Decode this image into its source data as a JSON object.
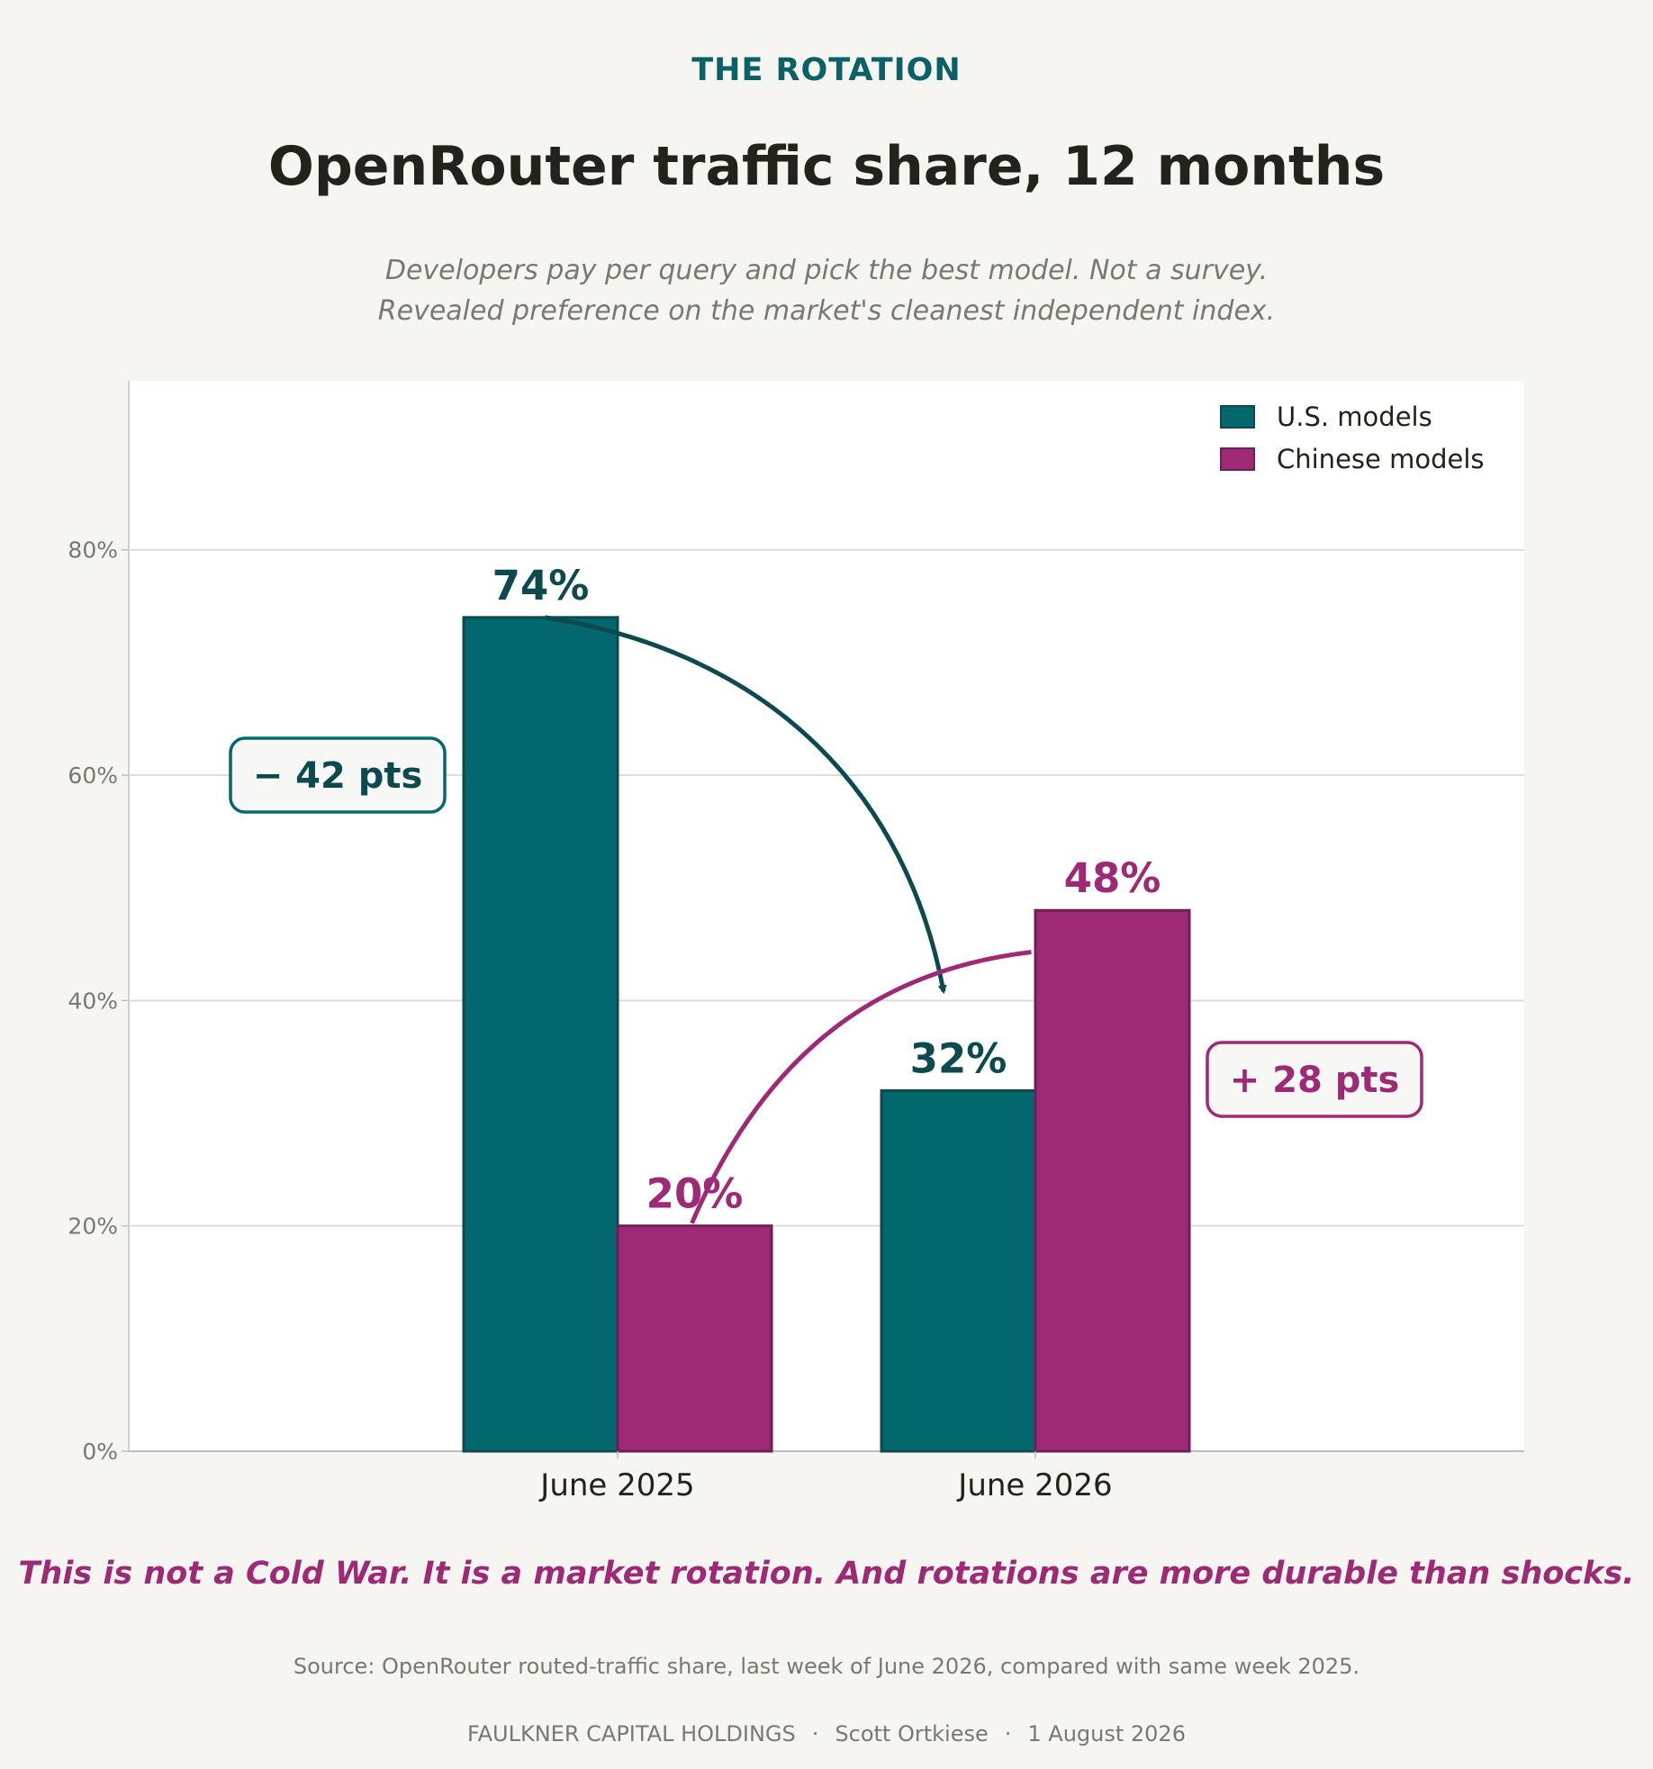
{
  "header": {
    "kicker": "THE ROTATION",
    "title": "OpenRouter traffic share, 12 months",
    "subtitle_lines": [
      "Developers pay per query and pick the best model. Not a survey.",
      "Revealed preference on the market's cleanest independent index."
    ]
  },
  "chart_data": {
    "type": "bar",
    "categories": [
      "June 2025",
      "June 2026"
    ],
    "series": [
      {
        "name": "U.S. models",
        "values": [
          74,
          32
        ],
        "color": "#02686d",
        "label_color": "#0d4a50"
      },
      {
        "name": "Chinese models",
        "values": [
          20,
          48
        ],
        "color": "#9e2a76",
        "label_color": "#9e2a76"
      }
    ],
    "data_labels": [
      [
        "74%",
        "32%"
      ],
      [
        "20%",
        "48%"
      ]
    ],
    "ylim": [
      0,
      95
    ],
    "yticks": [
      0,
      20,
      40,
      60,
      80
    ],
    "ytick_labels": [
      "0%",
      "20%",
      "40%",
      "60%",
      "80%"
    ],
    "grid": true,
    "legend_position": "top-right",
    "annotations": [
      {
        "text": "− 42 pts",
        "series": 0,
        "color": "#0d4a50",
        "border": "#02686d"
      },
      {
        "text": "+ 28 pts",
        "series": 1,
        "color": "#9e2a76",
        "border": "#9e2a76"
      }
    ]
  },
  "tagline": "This is not a Cold War. It is a market rotation. And rotations are more durable than shocks.",
  "source": "Source: OpenRouter routed-traffic share, last week of June 2026, compared with same week 2025.",
  "footer": {
    "org": "FAULKNER CAPITAL HOLDINGS",
    "separator": "·",
    "author": "Scott Ortkiese",
    "date": "1 August 2026"
  },
  "colors": {
    "teal": "#02686d",
    "magenta": "#9e2a76",
    "background": "#f6f5f1"
  }
}
